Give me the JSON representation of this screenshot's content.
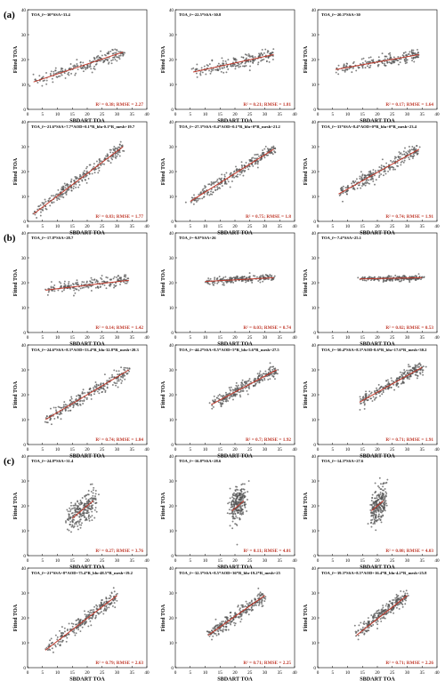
{
  "figure": {
    "ylabel": "Fitted TOA",
    "xlabel": "SBDART TOA",
    "colors": {
      "points": "#555555",
      "fit_line": "#c0392b",
      "stats_text": "#c0392b",
      "axis": "#000000"
    },
    "group_labels": [
      {
        "label": "(a)",
        "row": 0
      },
      {
        "label": "(b)",
        "row": 2
      },
      {
        "label": "(c)",
        "row": 4
      }
    ]
  },
  "chart_data": [
    {
      "type": "scatter",
      "row": 0,
      "col": 0,
      "equation": "TOA_f=-30*SSA+33.4",
      "stats": "R² = 0.38; RMSE = 2.27",
      "xlabel": "SBDART TOA",
      "ylabel": "Fitted TOA",
      "xlim": [
        0,
        40
      ],
      "ylim": [
        0,
        40
      ],
      "x_ticks": [
        0,
        5,
        10,
        15,
        20,
        25,
        30,
        35,
        40
      ],
      "y_ticks": [
        0,
        10,
        20,
        30,
        40
      ],
      "fit_line": [
        [
          2,
          11
        ],
        [
          32,
          23
        ]
      ],
      "cloud": {
        "x_range": [
          2,
          32
        ],
        "slope": 0.4,
        "intercept": 10.2,
        "spread": 2.5,
        "n": 200
      }
    },
    {
      "type": "scatter",
      "row": 0,
      "col": 1,
      "equation": "TOA_f=-22.5*SSA+30.8",
      "stats": "R² = 0.21; RMSE = 1.81",
      "xlabel": "SBDART TOA",
      "ylabel": "Fitted TOA",
      "xlim": [
        0,
        40
      ],
      "ylim": [
        0,
        40
      ],
      "x_ticks": [
        0,
        5,
        10,
        15,
        20,
        25,
        30,
        35,
        40
      ],
      "y_ticks": [
        0,
        10,
        20,
        30,
        40
      ],
      "fit_line": [
        [
          6,
          15
        ],
        [
          33,
          22
        ]
      ],
      "cloud": {
        "x_range": [
          6,
          33
        ],
        "slope": 0.26,
        "intercept": 13.4,
        "spread": 2.2,
        "n": 200
      }
    },
    {
      "type": "scatter",
      "row": 0,
      "col": 2,
      "equation": "TOA_f=-20.3*SSA+30",
      "stats": "R² = 0.17; RMSE = 1.64",
      "xlabel": "SBDART TOA",
      "ylabel": "Fitted TOA",
      "xlim": [
        0,
        40
      ],
      "ylim": [
        0,
        40
      ],
      "x_ticks": [
        0,
        5,
        10,
        15,
        20,
        25,
        30,
        35,
        40
      ],
      "y_ticks": [
        0,
        10,
        20,
        30,
        40
      ],
      "fit_line": [
        [
          6,
          16
        ],
        [
          34,
          22
        ]
      ],
      "cloud": {
        "x_range": [
          6,
          34
        ],
        "slope": 0.21,
        "intercept": 14.7,
        "spread": 2.0,
        "n": 200
      }
    },
    {
      "type": "scatter",
      "row": 1,
      "col": 0,
      "equation": "TOA_f=-21.6*SSA+7.7*AOD+0.1*R_blu-0.1*R_mesh+19.7",
      "stats": "R² = 0.83; RMSE = 1.77",
      "xlabel": "SBDART TOA",
      "ylabel": "Fitted TOA",
      "xlim": [
        0,
        40
      ],
      "ylim": [
        0,
        40
      ],
      "x_ticks": [
        0,
        5,
        10,
        15,
        20,
        25,
        30,
        35,
        40
      ],
      "y_ticks": [
        0,
        10,
        20,
        30,
        40
      ],
      "fit_line": [
        [
          2,
          3
        ],
        [
          32,
          30
        ]
      ],
      "cloud": {
        "x_range": [
          2,
          32
        ],
        "slope": 0.9,
        "intercept": 1.2,
        "spread": 2.2,
        "n": 260
      }
    },
    {
      "type": "scatter",
      "row": 1,
      "col": 1,
      "equation": "TOA_f=-27.3*SSA+8.4*AOD+0.1*R_blu+0*R_mesh+21.2",
      "stats": "R² = 0.75; RMSE = 1.8",
      "xlabel": "SBDART TOA",
      "ylabel": "Fitted TOA",
      "xlim": [
        0,
        40
      ],
      "ylim": [
        0,
        40
      ],
      "x_ticks": [
        0,
        5,
        10,
        15,
        20,
        25,
        30,
        35,
        40
      ],
      "y_ticks": [
        0,
        10,
        20,
        30,
        40
      ],
      "fit_line": [
        [
          5,
          8
        ],
        [
          33,
          29
        ]
      ],
      "cloud": {
        "x_range": [
          5,
          33
        ],
        "slope": 0.75,
        "intercept": 4.3,
        "spread": 2.2,
        "n": 260
      }
    },
    {
      "type": "scatter",
      "row": 1,
      "col": 2,
      "equation": "TOA_f=-33*SSA+8.4*AOD+0*R_blu+0*R_mesh+23.4",
      "stats": "R² = 0.74; RMSE = 1.91",
      "xlabel": "SBDART TOA",
      "ylabel": "Fitted TOA",
      "xlim": [
        0,
        40
      ],
      "ylim": [
        0,
        40
      ],
      "x_ticks": [
        0,
        5,
        10,
        15,
        20,
        25,
        30,
        35,
        40
      ],
      "y_ticks": [
        0,
        10,
        20,
        30,
        40
      ],
      "fit_line": [
        [
          7,
          11
        ],
        [
          34,
          29
        ]
      ],
      "cloud": {
        "x_range": [
          7,
          34
        ],
        "slope": 0.67,
        "intercept": 6.3,
        "spread": 2.3,
        "n": 260
      }
    },
    {
      "type": "scatter",
      "row": 2,
      "col": 0,
      "equation": "TOA_f=-17.8*SSA+28.7",
      "stats": "R² = 0.14; RMSE = 1.42",
      "xlabel": "SBDART TOA",
      "ylabel": "Fitted TOA",
      "xlim": [
        0,
        40
      ],
      "ylim": [
        0,
        40
      ],
      "x_ticks": [
        0,
        5,
        10,
        15,
        20,
        25,
        30,
        35,
        40
      ],
      "y_ticks": [
        0,
        10,
        20,
        30,
        40
      ],
      "fit_line": [
        [
          6,
          17
        ],
        [
          34,
          21
        ]
      ],
      "cloud": {
        "x_range": [
          6,
          34
        ],
        "slope": 0.15,
        "intercept": 16.4,
        "spread": 2.0,
        "n": 200
      }
    },
    {
      "type": "scatter",
      "row": 2,
      "col": 1,
      "equation": "TOA_f=-9.8*SSA+26",
      "stats": "R² = 0.03; RMSE = 0.74",
      "xlabel": "SBDART TOA",
      "ylabel": "Fitted TOA",
      "xlim": [
        0,
        40
      ],
      "ylim": [
        0,
        40
      ],
      "x_ticks": [
        0,
        5,
        10,
        15,
        20,
        25,
        30,
        35,
        40
      ],
      "y_ticks": [
        0,
        10,
        20,
        30,
        40
      ],
      "fit_line": [
        [
          10,
          20.5
        ],
        [
          33,
          22
        ]
      ],
      "cloud": {
        "x_range": [
          10,
          33
        ],
        "slope": 0.07,
        "intercept": 19.8,
        "spread": 1.2,
        "n": 200
      }
    },
    {
      "type": "scatter",
      "row": 2,
      "col": 2,
      "equation": "TOA_f=-7.4*SSA+25.1",
      "stats": "R² = 0.02; RMSE = 0.53",
      "xlabel": "SBDART TOA",
      "ylabel": "Fitted TOA",
      "xlim": [
        0,
        40
      ],
      "ylim": [
        0,
        40
      ],
      "x_ticks": [
        0,
        5,
        10,
        15,
        20,
        25,
        30,
        35,
        40
      ],
      "y_ticks": [
        0,
        10,
        20,
        30,
        40
      ],
      "fit_line": [
        [
          14,
          21.5
        ],
        [
          35,
          22
        ]
      ],
      "cloud": {
        "x_range": [
          14,
          35
        ],
        "slope": 0.02,
        "intercept": 21.2,
        "spread": 0.9,
        "n": 200
      }
    },
    {
      "type": "scatter",
      "row": 3,
      "col": 0,
      "equation": "TOA_f=-24.6*SSA+8.3*AOD+53.4*R_blu-32.8*R_mesh+20.3",
      "stats": "R² = 0.74; RMSE = 1.84",
      "xlabel": "SBDART TOA",
      "ylabel": "Fitted TOA",
      "xlim": [
        0,
        40
      ],
      "ylim": [
        0,
        40
      ],
      "x_ticks": [
        0,
        5,
        10,
        15,
        20,
        25,
        30,
        35,
        40
      ],
      "y_ticks": [
        0,
        10,
        20,
        30,
        40
      ],
      "fit_line": [
        [
          6,
          10
        ],
        [
          34,
          30
        ]
      ],
      "cloud": {
        "x_range": [
          6,
          34
        ],
        "slope": 0.71,
        "intercept": 5.7,
        "spread": 2.2,
        "n": 260
      }
    },
    {
      "type": "scatter",
      "row": 3,
      "col": 1,
      "equation": "TOA_f=-44.2*SSA+8.5*AOD+5*R_blu-5.6*R_mesh+27.5",
      "stats": "R² = 0.7; RMSE = 1.92",
      "xlabel": "SBDART TOA",
      "ylabel": "Fitted TOA",
      "xlim": [
        0,
        40
      ],
      "ylim": [
        0,
        40
      ],
      "x_ticks": [
        0,
        5,
        10,
        15,
        20,
        25,
        30,
        35,
        40
      ],
      "y_ticks": [
        0,
        10,
        20,
        30,
        40
      ],
      "fit_line": [
        [
          12,
          16
        ],
        [
          34,
          30
        ]
      ],
      "cloud": {
        "x_range": [
          12,
          34
        ],
        "slope": 0.64,
        "intercept": 8.3,
        "spread": 2.2,
        "n": 260
      }
    },
    {
      "type": "scatter",
      "row": 3,
      "col": 2,
      "equation": "TOA_f=-50.4*SSA+8.3*AOD-8.6*R_blu+17.6*R_mesh+30.2",
      "stats": "R² = 0.71; RMSE = 1.91",
      "xlabel": "SBDART TOA",
      "ylabel": "Fitted TOA",
      "xlim": [
        0,
        40
      ],
      "ylim": [
        0,
        40
      ],
      "x_ticks": [
        0,
        5,
        10,
        15,
        20,
        25,
        30,
        35,
        40
      ],
      "y_ticks": [
        0,
        10,
        20,
        30,
        40
      ],
      "fit_line": [
        [
          14,
          17
        ],
        [
          35,
          31
        ]
      ],
      "cloud": {
        "x_range": [
          14,
          35
        ],
        "slope": 0.67,
        "intercept": 7.6,
        "spread": 2.2,
        "n": 260
      }
    },
    {
      "type": "scatter",
      "row": 4,
      "col": 0,
      "equation": "TOA_f=-24.8*SSA+31.4",
      "stats": "R² = 0.27; RMSE = 3.76",
      "xlabel": "SBDART TOA",
      "ylabel": "Fitted TOA",
      "xlim": [
        0,
        40
      ],
      "ylim": [
        0,
        40
      ],
      "x_ticks": [
        0,
        5,
        10,
        15,
        20,
        25,
        30,
        35,
        40
      ],
      "y_ticks": [
        0,
        10,
        20,
        30,
        40
      ],
      "fit_line": [
        [
          15,
          15
        ],
        [
          22,
          22
        ]
      ],
      "cloud": {
        "x_range": [
          13,
          23
        ],
        "slope": 1.0,
        "intercept": 0,
        "spread": 5.5,
        "n": 240
      }
    },
    {
      "type": "scatter",
      "row": 4,
      "col": 1,
      "equation": "TOA_f=-16.8*SSA+28.6",
      "stats": "R² = 0.11; RMSE = 4.01",
      "xlabel": "SBDART TOA",
      "ylabel": "Fitted TOA",
      "xlim": [
        0,
        40
      ],
      "ylim": [
        0,
        40
      ],
      "x_ticks": [
        0,
        5,
        10,
        15,
        20,
        25,
        30,
        35,
        40
      ],
      "y_ticks": [
        0,
        10,
        20,
        30,
        40
      ],
      "fit_line": [
        [
          19,
          18
        ],
        [
          23,
          22
        ]
      ],
      "cloud": {
        "x_range": [
          18.5,
          23.5
        ],
        "slope": 1.0,
        "intercept": 0,
        "spread": 6.0,
        "n": 240
      }
    },
    {
      "type": "scatter",
      "row": 4,
      "col": 2,
      "equation": "TOA_f=-14.3*SSA+27.6",
      "stats": "R² = 0.08; RMSE = 4.03",
      "xlabel": "SBDART TOA",
      "ylabel": "Fitted TOA",
      "xlim": [
        0,
        40
      ],
      "ylim": [
        0,
        40
      ],
      "x_ticks": [
        0,
        5,
        10,
        15,
        20,
        25,
        30,
        35,
        40
      ],
      "y_ticks": [
        0,
        10,
        20,
        30,
        40
      ],
      "fit_line": [
        [
          18,
          18
        ],
        [
          22,
          22
        ]
      ],
      "cloud": {
        "x_range": [
          18,
          22.5
        ],
        "slope": 1.0,
        "intercept": 0,
        "spread": 6.0,
        "n": 240
      }
    },
    {
      "type": "scatter",
      "row": 5,
      "col": 0,
      "equation": "TOA_f=-21*SSA+8*AOD+75.4*R_blu-48.5*R_mesh+19.2",
      "stats": "R² = 0.79; RMSE = 2.63",
      "xlabel": "SBDART TOA",
      "ylabel": "Fitted TOA",
      "xlim": [
        0,
        40
      ],
      "ylim": [
        0,
        40
      ],
      "x_ticks": [
        0,
        5,
        10,
        15,
        20,
        25,
        30,
        35,
        40
      ],
      "y_ticks": [
        0,
        10,
        20,
        30,
        40
      ],
      "fit_line": [
        [
          6,
          7
        ],
        [
          30,
          29
        ]
      ],
      "cloud": {
        "x_range": [
          6,
          30
        ],
        "slope": 0.92,
        "intercept": 1.5,
        "spread": 2.5,
        "n": 260
      }
    },
    {
      "type": "scatter",
      "row": 5,
      "col": 1,
      "equation": "TOA_f=-32.3*SSA+8.5*AOD+36*R_blu-19.2*R_mesh+25",
      "stats": "R² = 0.71; RMSE = 2.25",
      "xlabel": "SBDART TOA",
      "ylabel": "Fitted TOA",
      "xlim": [
        0,
        40
      ],
      "ylim": [
        0,
        40
      ],
      "x_ticks": [
        0,
        5,
        10,
        15,
        20,
        25,
        30,
        35,
        40
      ],
      "y_ticks": [
        0,
        10,
        20,
        30,
        40
      ],
      "fit_line": [
        [
          11,
          13
        ],
        [
          30,
          29
        ]
      ],
      "cloud": {
        "x_range": [
          11,
          30
        ],
        "slope": 0.84,
        "intercept": 3.8,
        "spread": 2.4,
        "n": 260
      }
    },
    {
      "type": "scatter",
      "row": 5,
      "col": 2,
      "equation": "TOA_f=-39.3*SSA+8.5*AOD+16.4*R_blu-4.2*R_mesh+25.8",
      "stats": "R² = 0.71; RMSE = 2.26",
      "xlabel": "SBDART TOA",
      "ylabel": "Fitted TOA",
      "xlim": [
        0,
        40
      ],
      "ylim": [
        0,
        40
      ],
      "x_ticks": [
        0,
        5,
        10,
        15,
        20,
        25,
        30,
        35,
        40
      ],
      "y_ticks": [
        0,
        10,
        20,
        30,
        40
      ],
      "fit_line": [
        [
          13,
          13
        ],
        [
          30,
          29
        ]
      ],
      "cloud": {
        "x_range": [
          13,
          30
        ],
        "slope": 0.94,
        "intercept": 1.3,
        "spread": 2.4,
        "n": 260
      }
    }
  ]
}
